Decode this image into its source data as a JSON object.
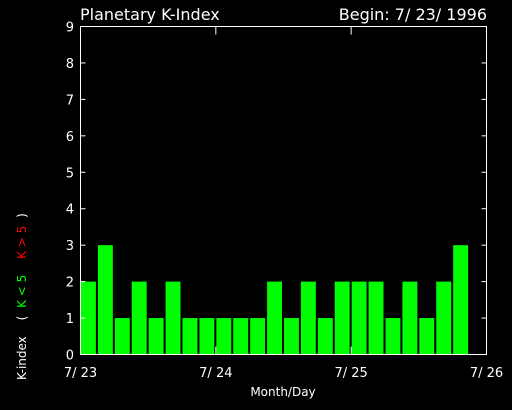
{
  "chart_data": {
    "type": "bar",
    "title": "Planetary K-Index",
    "begin_label": "Begin: 7/ 23/ 1996",
    "xlabel": "Month/Day",
    "ylabel": {
      "prefix": "K-index",
      "open": "(",
      "low": "K < 5",
      "high": "K > 5",
      "close": ")"
    },
    "xlim": [
      0,
      24
    ],
    "ylim": [
      0,
      9
    ],
    "yticks": [
      "0",
      "1",
      "2",
      "3",
      "4",
      "5",
      "6",
      "7",
      "8",
      "9"
    ],
    "xticks": [
      {
        "pos": 0,
        "label": "7/ 23"
      },
      {
        "pos": 8,
        "label": "7/ 24"
      },
      {
        "pos": 16,
        "label": "7/ 25"
      },
      {
        "pos": 24,
        "label": "7/ 26"
      }
    ],
    "values": [
      2,
      3,
      1,
      2,
      1,
      2,
      1,
      1,
      1,
      1,
      1,
      2,
      1,
      2,
      1,
      2,
      2,
      2,
      1,
      2,
      1,
      2,
      3
    ],
    "threshold": 5
  },
  "colors": {
    "background": "#000000",
    "axes": "#ffffff",
    "text": "#ffffff",
    "bar_low": "#00ff00",
    "bar_high": "#ff0000"
  }
}
